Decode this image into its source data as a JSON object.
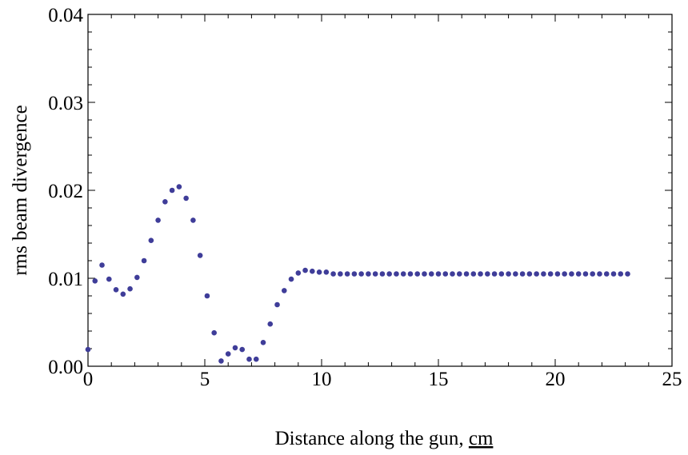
{
  "chart_data": {
    "type": "scatter",
    "title": "",
    "xlabel": "Distance along the gun, ",
    "xlabel_unit": "cm",
    "ylabel": "rms beam divergence",
    "xlim": [
      0,
      25
    ],
    "ylim": [
      0,
      0.04
    ],
    "x_ticks": [
      "0",
      "5",
      "10",
      "15",
      "20",
      "25"
    ],
    "y_ticks": [
      "0.00",
      "0.01",
      "0.02",
      "0.03",
      "0.04"
    ],
    "grid": false,
    "legend": "none",
    "point_color": "#3f3d99",
    "series": [
      {
        "x": [
          0.0,
          0.3,
          0.6,
          0.9,
          1.2,
          1.5,
          1.8,
          2.1,
          2.4,
          2.7,
          3.0,
          3.3,
          3.6,
          3.9,
          4.2,
          4.5,
          4.8,
          5.1,
          5.4,
          5.7,
          6.0,
          6.3,
          6.6,
          6.9,
          7.2,
          7.5,
          7.8,
          8.1,
          8.4,
          8.7,
          9.0,
          9.3,
          9.6,
          9.9,
          10.2,
          10.5,
          10.8,
          11.1,
          11.4,
          11.7,
          12.0,
          12.3,
          12.6,
          12.9,
          13.2,
          13.5,
          13.8,
          14.1,
          14.4,
          14.7,
          15.0,
          15.3,
          15.6,
          15.9,
          16.2,
          16.5,
          16.8,
          17.1,
          17.4,
          17.7,
          18.0,
          18.3,
          18.6,
          18.9,
          19.2,
          19.5,
          19.8,
          20.1,
          20.4,
          20.7,
          21.0,
          21.3,
          21.6,
          21.9,
          22.2,
          22.5,
          22.8,
          23.1
        ],
        "y": [
          0.0019,
          0.0097,
          0.0115,
          0.0099,
          0.0087,
          0.0082,
          0.0088,
          0.0101,
          0.012,
          0.0143,
          0.0166,
          0.0187,
          0.02,
          0.0204,
          0.0191,
          0.0166,
          0.0126,
          0.008,
          0.0038,
          0.0006,
          0.0014,
          0.0021,
          0.0019,
          0.0008,
          0.0008,
          0.0027,
          0.0048,
          0.007,
          0.0086,
          0.0099,
          0.0106,
          0.0109,
          0.0108,
          0.0107,
          0.0107,
          0.0105,
          0.0105,
          0.0105,
          0.0105,
          0.0105,
          0.0105,
          0.0105,
          0.0105,
          0.0105,
          0.0105,
          0.0105,
          0.0105,
          0.0105,
          0.0105,
          0.0105,
          0.0105,
          0.0105,
          0.0105,
          0.0105,
          0.0105,
          0.0105,
          0.0105,
          0.0105,
          0.0105,
          0.0105,
          0.0105,
          0.0105,
          0.0105,
          0.0105,
          0.0105,
          0.0105,
          0.0105,
          0.0105,
          0.0105,
          0.0105,
          0.0105,
          0.0105,
          0.0105,
          0.0105,
          0.0105,
          0.0105,
          0.0105,
          0.0105
        ]
      }
    ]
  }
}
